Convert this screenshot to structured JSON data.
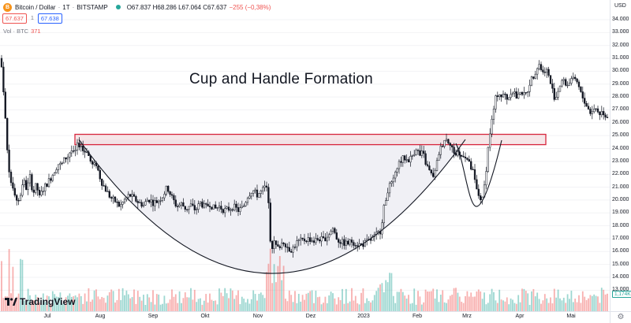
{
  "header": {
    "symbol": "Bitcoin / Dollar",
    "interval": "1T",
    "exchange": "BITSTAMP",
    "logo_glyph": "B",
    "ohlc": "O67.837 H68.286 L67.064 C67.637",
    "change": "−255 (−0,38%)",
    "status_color": "#26a69a"
  },
  "price_boxes": {
    "sell": "67.637",
    "mid": "1",
    "buy": "67.638"
  },
  "volume_legend": {
    "label": "Vol · BTC",
    "value": "371"
  },
  "annotation_title": "Cup and Handle Formation",
  "branding": "TradingView",
  "axis": {
    "currency": "USD",
    "volume_tag": "1,174K",
    "settings_icon": "gear-icon"
  },
  "colors": {
    "up": "#26a69a",
    "down": "#ef5350",
    "resistance_border": "#d7263d",
    "resistance_fill": "#f3dde0",
    "cup_fill": "#f0f0f5"
  },
  "chart_data": {
    "type": "candlestick",
    "instrument": "Bitcoin / Dollar",
    "ylim": [
      12000,
      34800
    ],
    "y_ticks": [
      "34.000",
      "33.000",
      "32.000",
      "31.000",
      "30.000",
      "29.000",
      "28.000",
      "27.000",
      "26.000",
      "25.000",
      "24.000",
      "23.000",
      "22.000",
      "21.000",
      "20.000",
      "19.000",
      "18.000",
      "17.000",
      "16.000",
      "15.000",
      "14.000",
      "13.000"
    ],
    "x_ticks": [
      "Jul",
      "Aug",
      "Sep",
      "Okt",
      "Nov",
      "Dez",
      "2023",
      "Feb",
      "Mrz",
      "Apr",
      "Mai"
    ],
    "resistance_zone": [
      24500,
      25100
    ],
    "cup_bottom": 14300,
    "handle_bottom": 19500,
    "close_path": [
      [
        0,
        31000
      ],
      [
        3,
        30000
      ],
      [
        6,
        27000
      ],
      [
        10,
        23000
      ],
      [
        14,
        21500
      ],
      [
        18,
        20800
      ],
      [
        22,
        19500
      ],
      [
        26,
        20500
      ],
      [
        30,
        21500
      ],
      [
        34,
        20800
      ],
      [
        38,
        21800
      ],
      [
        42,
        20500
      ],
      [
        46,
        21200
      ],
      [
        50,
        20200
      ],
      [
        55,
        20900
      ],
      [
        60,
        21300
      ],
      [
        66,
        21900
      ],
      [
        70,
        22400
      ],
      [
        74,
        22800
      ],
      [
        78,
        22700
      ],
      [
        82,
        23200
      ],
      [
        86,
        23400
      ],
      [
        90,
        23900
      ],
      [
        94,
        23500
      ],
      [
        98,
        24200
      ],
      [
        102,
        24400
      ],
      [
        106,
        23700
      ],
      [
        110,
        23900
      ],
      [
        114,
        23100
      ],
      [
        118,
        22600
      ],
      [
        122,
        22800
      ],
      [
        128,
        21500
      ],
      [
        134,
        20800
      ],
      [
        140,
        20200
      ],
      [
        146,
        19900
      ],
      [
        152,
        19500
      ],
      [
        158,
        20000
      ],
      [
        164,
        20400
      ],
      [
        170,
        20100
      ],
      [
        176,
        19800
      ],
      [
        182,
        19600
      ],
      [
        188,
        20100
      ],
      [
        194,
        19800
      ],
      [
        200,
        19900
      ],
      [
        206,
        20300
      ],
      [
        212,
        21000
      ],
      [
        218,
        20200
      ],
      [
        224,
        19500
      ],
      [
        230,
        19700
      ],
      [
        236,
        19300
      ],
      [
        242,
        19600
      ],
      [
        248,
        19200
      ],
      [
        254,
        19800
      ],
      [
        260,
        19400
      ],
      [
        266,
        19700
      ],
      [
        272,
        19300
      ],
      [
        278,
        19500
      ],
      [
        284,
        19200
      ],
      [
        290,
        19300
      ],
      [
        296,
        19500
      ],
      [
        302,
        19200
      ],
      [
        308,
        19400
      ],
      [
        314,
        20300
      ],
      [
        320,
        20800
      ],
      [
        326,
        20400
      ],
      [
        332,
        20700
      ],
      [
        336,
        21000
      ],
      [
        340,
        20600
      ],
      [
        342,
        17500
      ],
      [
        344,
        16300
      ],
      [
        348,
        16700
      ],
      [
        352,
        16200
      ],
      [
        356,
        16600
      ],
      [
        360,
        16800
      ],
      [
        364,
        16400
      ],
      [
        368,
        16100
      ],
      [
        372,
        16300
      ],
      [
        376,
        16700
      ],
      [
        380,
        16800
      ],
      [
        386,
        16900
      ],
      [
        392,
        17000
      ],
      [
        398,
        16800
      ],
      [
        404,
        17000
      ],
      [
        410,
        16900
      ],
      [
        416,
        17300
      ],
      [
        422,
        17800
      ],
      [
        428,
        16900
      ],
      [
        434,
        16700
      ],
      [
        440,
        16600
      ],
      [
        446,
        16800
      ],
      [
        452,
        16600
      ],
      [
        458,
        16500
      ],
      [
        464,
        16700
      ],
      [
        470,
        16900
      ],
      [
        476,
        17200
      ],
      [
        482,
        17600
      ],
      [
        488,
        19800
      ],
      [
        492,
        20900
      ],
      [
        496,
        21200
      ],
      [
        500,
        21600
      ],
      [
        504,
        22800
      ],
      [
        508,
        23000
      ],
      [
        512,
        23300
      ],
      [
        516,
        23100
      ],
      [
        520,
        23200
      ],
      [
        524,
        23600
      ],
      [
        528,
        24100
      ],
      [
        532,
        23400
      ],
      [
        536,
        23700
      ],
      [
        540,
        22800
      ],
      [
        544,
        22300
      ],
      [
        548,
        21800
      ],
      [
        552,
        22200
      ],
      [
        556,
        23600
      ],
      [
        560,
        24200
      ],
      [
        564,
        24800
      ],
      [
        568,
        24600
      ],
      [
        572,
        24400
      ],
      [
        576,
        23400
      ],
      [
        580,
        23800
      ],
      [
        584,
        23300
      ],
      [
        588,
        23600
      ],
      [
        592,
        23200
      ],
      [
        596,
        22600
      ],
      [
        600,
        22100
      ],
      [
        604,
        20800
      ],
      [
        608,
        20200
      ],
      [
        612,
        20000
      ],
      [
        616,
        22200
      ],
      [
        620,
        24800
      ],
      [
        624,
        26300
      ],
      [
        628,
        27800
      ],
      [
        632,
        28400
      ],
      [
        636,
        28000
      ],
      [
        640,
        28200
      ],
      [
        644,
        27800
      ],
      [
        648,
        28500
      ],
      [
        652,
        28400
      ],
      [
        656,
        27800
      ],
      [
        660,
        28600
      ],
      [
        664,
        28100
      ],
      [
        668,
        28300
      ],
      [
        672,
        29200
      ],
      [
        676,
        29600
      ],
      [
        680,
        30200
      ],
      [
        684,
        30600
      ],
      [
        688,
        29800
      ],
      [
        692,
        30300
      ],
      [
        696,
        29500
      ],
      [
        700,
        28600
      ],
      [
        704,
        27800
      ],
      [
        708,
        28600
      ],
      [
        712,
        29300
      ],
      [
        716,
        29100
      ],
      [
        720,
        28900
      ],
      [
        724,
        29500
      ],
      [
        728,
        29200
      ],
      [
        732,
        29100
      ],
      [
        736,
        28300
      ],
      [
        740,
        27800
      ],
      [
        744,
        27300
      ],
      [
        748,
        26800
      ],
      [
        752,
        27000
      ],
      [
        756,
        27100
      ],
      [
        760,
        26700
      ],
      [
        764,
        26900
      ],
      [
        768,
        26500
      ],
      [
        771,
        26600
      ]
    ]
  }
}
